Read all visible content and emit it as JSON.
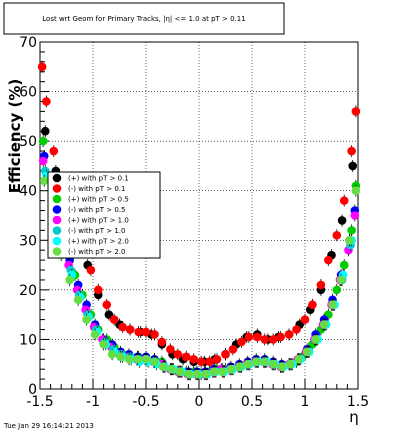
{
  "chart_data": {
    "type": "scatter",
    "title": "Lost wrt Geom for Primary Tracks, |η| <= 1.0 at pT > 0.11",
    "xlabel": "η",
    "ylabel": "Efficiency (%)",
    "xlim": [
      -1.5,
      1.5
    ],
    "ylim": [
      0,
      70
    ],
    "xticks": [
      "-1.5",
      "-1",
      "-0.5",
      "0",
      "0.5",
      "1",
      "1.5"
    ],
    "yticks": [
      "0",
      "10",
      "20",
      "30",
      "40",
      "50",
      "60",
      "70"
    ],
    "grid": true,
    "legend_position": "left-middle",
    "timestamp": "Tue Jan 29 16:14:21 2013",
    "series": [
      {
        "name": "(+) with pT > 0.1",
        "color": "#000000",
        "x": [
          -1.45,
          -1.35,
          -1.25,
          -1.15,
          -1.05,
          -0.95,
          -0.85,
          -0.75,
          -0.65,
          -0.55,
          -0.45,
          -0.35,
          -0.25,
          -0.15,
          -0.05,
          0.05,
          0.15,
          0.25,
          0.35,
          0.45,
          0.55,
          0.65,
          0.75,
          0.85,
          0.95,
          1.05,
          1.15,
          1.25,
          1.35,
          1.45
        ],
        "y": [
          52,
          44,
          36,
          30,
          25,
          19,
          15,
          13,
          12,
          11.5,
          11,
          9,
          7,
          6,
          5.5,
          5.5,
          6,
          7,
          9,
          10.5,
          11,
          10,
          10.5,
          11,
          13,
          16,
          20,
          27,
          34,
          45
        ]
      },
      {
        "name": "(-) with pT > 0.1",
        "color": "#ff0000",
        "x": [
          -1.48,
          -1.44,
          -1.37,
          -1.32,
          -1.25,
          -1.17,
          -1.1,
          -1.02,
          -0.95,
          -0.87,
          -0.8,
          -0.72,
          -0.65,
          -0.57,
          -0.5,
          -0.42,
          -0.35,
          -0.27,
          -0.2,
          -0.12,
          -0.05,
          0.02,
          0.1,
          0.17,
          0.25,
          0.32,
          0.4,
          0.47,
          0.55,
          0.62,
          0.7,
          0.77,
          0.85,
          0.92,
          1.0,
          1.07,
          1.15,
          1.22,
          1.3,
          1.37,
          1.44,
          1.48
        ],
        "y": [
          65,
          58,
          48,
          43,
          38,
          33,
          28,
          24,
          20,
          17,
          14,
          12.5,
          12,
          11.5,
          11.5,
          11,
          9.5,
          8,
          7,
          6.5,
          6,
          5.5,
          5.5,
          6,
          7,
          8,
          9.5,
          10.5,
          10.5,
          10,
          10,
          10.5,
          11,
          12,
          14,
          17,
          21,
          26,
          31,
          38,
          48,
          56
        ]
      },
      {
        "name": "(+) with pT > 0.5",
        "color": "#00cc00",
        "x": [
          -1.47,
          -1.4,
          -1.32,
          -1.25,
          -1.17,
          -1.1,
          -1.02,
          -0.95,
          -0.87,
          -0.8,
          -0.72,
          -0.65,
          -0.57,
          -0.5,
          -0.42,
          -0.35,
          -0.27,
          -0.2,
          -0.12,
          -0.05,
          0.02,
          0.1,
          0.17,
          0.25,
          0.32,
          0.4,
          0.47,
          0.55,
          0.62,
          0.7,
          0.77,
          0.85,
          0.92,
          1.0,
          1.07,
          1.15,
          1.22,
          1.3,
          1.37,
          1.44,
          1.48
        ],
        "y": [
          50,
          42,
          34,
          28,
          23,
          19,
          15,
          12,
          10,
          8.5,
          7,
          6.5,
          6.5,
          6,
          6,
          5.5,
          4,
          3.5,
          3.5,
          3.5,
          3,
          3.5,
          4,
          4,
          4,
          4.5,
          5,
          5.5,
          5.5,
          5,
          4.5,
          5,
          5.5,
          7,
          9,
          12,
          15,
          20,
          25,
          32,
          41
        ]
      },
      {
        "name": "(-) with pT > 0.5",
        "color": "#0000ff",
        "x": [
          -1.46,
          -1.38,
          -1.3,
          -1.22,
          -1.14,
          -1.06,
          -0.98,
          -0.9,
          -0.82,
          -0.74,
          -0.66,
          -0.58,
          -0.5,
          -0.42,
          -0.34,
          -0.26,
          -0.18,
          -0.1,
          -0.02,
          0.06,
          0.14,
          0.22,
          0.3,
          0.38,
          0.46,
          0.54,
          0.62,
          0.7,
          0.78,
          0.86,
          0.94,
          1.02,
          1.1,
          1.18,
          1.26,
          1.34,
          1.42,
          1.47
        ],
        "y": [
          47,
          39,
          31,
          26,
          21,
          17,
          13,
          10,
          9,
          7.5,
          7,
          6.5,
          6.5,
          6,
          5,
          4,
          3.5,
          3.5,
          3.5,
          3.5,
          4,
          4,
          4.5,
          5,
          5.5,
          6,
          6,
          5.5,
          5,
          5,
          6,
          8,
          11,
          14,
          18,
          23,
          30,
          36
        ]
      },
      {
        "name": "(+) with pT > 1.0",
        "color": "#ff00ff",
        "x": [
          -1.47,
          -1.39,
          -1.31,
          -1.23,
          -1.15,
          -1.07,
          -0.99,
          -0.91,
          -0.83,
          -0.75,
          -0.67,
          -0.59,
          -0.51,
          -0.43,
          -0.35,
          -0.27,
          -0.19,
          -0.11,
          -0.03,
          0.05,
          0.13,
          0.21,
          0.29,
          0.37,
          0.45,
          0.53,
          0.61,
          0.69,
          0.77,
          0.85,
          0.93,
          1.01,
          1.09,
          1.17,
          1.25,
          1.33,
          1.41,
          1.47
        ],
        "y": [
          46,
          38,
          30,
          25,
          20,
          16,
          12.5,
          10,
          8.5,
          7,
          6.5,
          6,
          6,
          5.5,
          5,
          4,
          3.5,
          3,
          3,
          3,
          3.5,
          4,
          4,
          4.5,
          5,
          5.5,
          5.5,
          5,
          4.5,
          5,
          6,
          7.5,
          10,
          13,
          17,
          22,
          28,
          35
        ]
      },
      {
        "name": "(-) with pT > 1.0",
        "color": "#00cccc",
        "x": [
          -1.45,
          -1.37,
          -1.29,
          -1.21,
          -1.13,
          -1.05,
          -0.97,
          -0.89,
          -0.81,
          -0.73,
          -0.65,
          -0.57,
          -0.49,
          -0.41,
          -0.33,
          -0.25,
          -0.17,
          -0.09,
          -0.01,
          0.07,
          0.15,
          0.23,
          0.31,
          0.39,
          0.47,
          0.55,
          0.63,
          0.71,
          0.79,
          0.87,
          0.95,
          1.03,
          1.11,
          1.19,
          1.27,
          1.35,
          1.43
        ],
        "y": [
          44,
          36,
          29,
          24,
          19,
          15,
          12,
          9.5,
          8,
          7,
          6.5,
          6,
          6,
          5.5,
          4.5,
          4,
          3.5,
          3,
          3,
          3,
          3.5,
          3.5,
          4,
          4.5,
          5,
          5.5,
          5.5,
          5,
          4.5,
          5,
          6,
          7.5,
          10,
          13,
          17,
          22,
          29
        ]
      },
      {
        "name": "(+) with pT > 2.0",
        "color": "#00ffff",
        "x": [
          -1.44,
          -1.36,
          -1.28,
          -1.2,
          -1.12,
          -1.04,
          -0.96,
          -0.88,
          -0.8,
          -0.72,
          -0.64,
          -0.56,
          -0.48,
          -0.4,
          -0.32,
          -0.24,
          -0.16,
          -0.08,
          0.0,
          0.08,
          0.16,
          0.24,
          0.32,
          0.4,
          0.48,
          0.56,
          0.64,
          0.72,
          0.8,
          0.88,
          0.96,
          1.04,
          1.12,
          1.2,
          1.28,
          1.36,
          1.44
        ],
        "y": [
          43,
          35,
          28,
          23,
          18.5,
          14.5,
          11.5,
          9,
          7.5,
          6.5,
          6,
          5.5,
          5.5,
          5,
          4.5,
          4,
          3.5,
          3,
          3,
          3,
          3.5,
          3.5,
          4,
          4.5,
          5,
          5.5,
          5.5,
          5,
          4.5,
          5,
          6,
          7.5,
          10,
          13,
          17,
          23,
          30
        ]
      },
      {
        "name": "(-) with pT > 2.0",
        "color": "#66dd44",
        "x": [
          -1.46,
          -1.38,
          -1.3,
          -1.22,
          -1.14,
          -1.06,
          -0.98,
          -0.9,
          -0.82,
          -0.74,
          -0.66,
          -0.58,
          -0.5,
          -0.42,
          -0.34,
          -0.26,
          -0.18,
          -0.1,
          -0.02,
          0.06,
          0.14,
          0.22,
          0.3,
          0.38,
          0.46,
          0.54,
          0.62,
          0.7,
          0.78,
          0.86,
          0.94,
          1.02,
          1.1,
          1.18,
          1.26,
          1.34,
          1.42,
          1.48
        ],
        "y": [
          42,
          34,
          27,
          22,
          18,
          14,
          11,
          9,
          7,
          6.5,
          6,
          6,
          6,
          5.5,
          4.5,
          4,
          3.5,
          3,
          3,
          3,
          3.5,
          3.5,
          4,
          4.5,
          5,
          5.5,
          5.5,
          5,
          4.5,
          5,
          6,
          7.5,
          10,
          13,
          17,
          22,
          30,
          40
        ]
      }
    ]
  }
}
